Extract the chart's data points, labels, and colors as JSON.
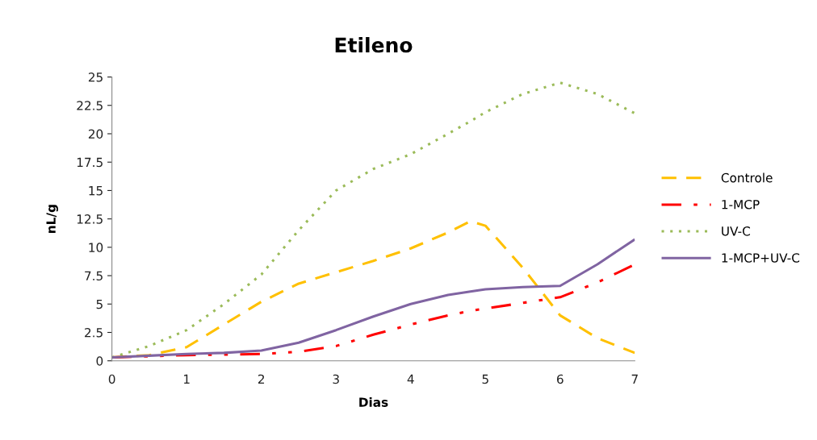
{
  "chart_data": {
    "type": "line",
    "title": "Etileno",
    "xlabel": "Dias",
    "ylabel": "nL/g",
    "x": [
      0,
      0.5,
      1,
      1.5,
      2,
      2.5,
      3,
      3.5,
      4,
      4.5,
      4.8,
      5,
      5.5,
      6,
      6.5,
      7
    ],
    "series": [
      {
        "name": "Controle",
        "color": "#ffc000",
        "line_style": "dashed",
        "values": [
          0.3,
          0.5,
          1.2,
          3.2,
          5.2,
          6.8,
          7.8,
          8.8,
          9.9,
          11.3,
          12.3,
          11.9,
          8.2,
          4.0,
          2.0,
          0.7
        ]
      },
      {
        "name": "1-MCP",
        "color": "#ff0000",
        "line_style": "dashdot",
        "values": [
          0.3,
          0.4,
          0.5,
          0.55,
          0.6,
          0.8,
          1.3,
          2.3,
          3.2,
          4.0,
          4.4,
          4.6,
          5.1,
          5.6,
          6.9,
          8.5
        ]
      },
      {
        "name": "UV-C",
        "color": "#9bbb59",
        "line_style": "dotted",
        "values": [
          0.3,
          1.3,
          2.7,
          5.0,
          7.6,
          11.5,
          15.0,
          16.9,
          18.2,
          20.0,
          21.1,
          21.9,
          23.5,
          24.5,
          23.5,
          21.8
        ]
      },
      {
        "name": "1-MCP+UV-C",
        "color": "#8064a2",
        "line_style": "solid",
        "values": [
          0.3,
          0.45,
          0.6,
          0.7,
          0.9,
          1.6,
          2.7,
          3.9,
          5.0,
          5.8,
          6.1,
          6.3,
          6.5,
          6.6,
          8.5,
          10.7
        ]
      }
    ],
    "xlim": [
      0,
      7
    ],
    "xticks": [
      0,
      1,
      2,
      3,
      4,
      5,
      6,
      7
    ],
    "ylim": [
      0,
      25
    ],
    "yticks": [
      0,
      2.5,
      5,
      7.5,
      10,
      12.5,
      15,
      17.5,
      20,
      22.5,
      25
    ],
    "grid": false,
    "legend": "right",
    "marker": "none"
  }
}
